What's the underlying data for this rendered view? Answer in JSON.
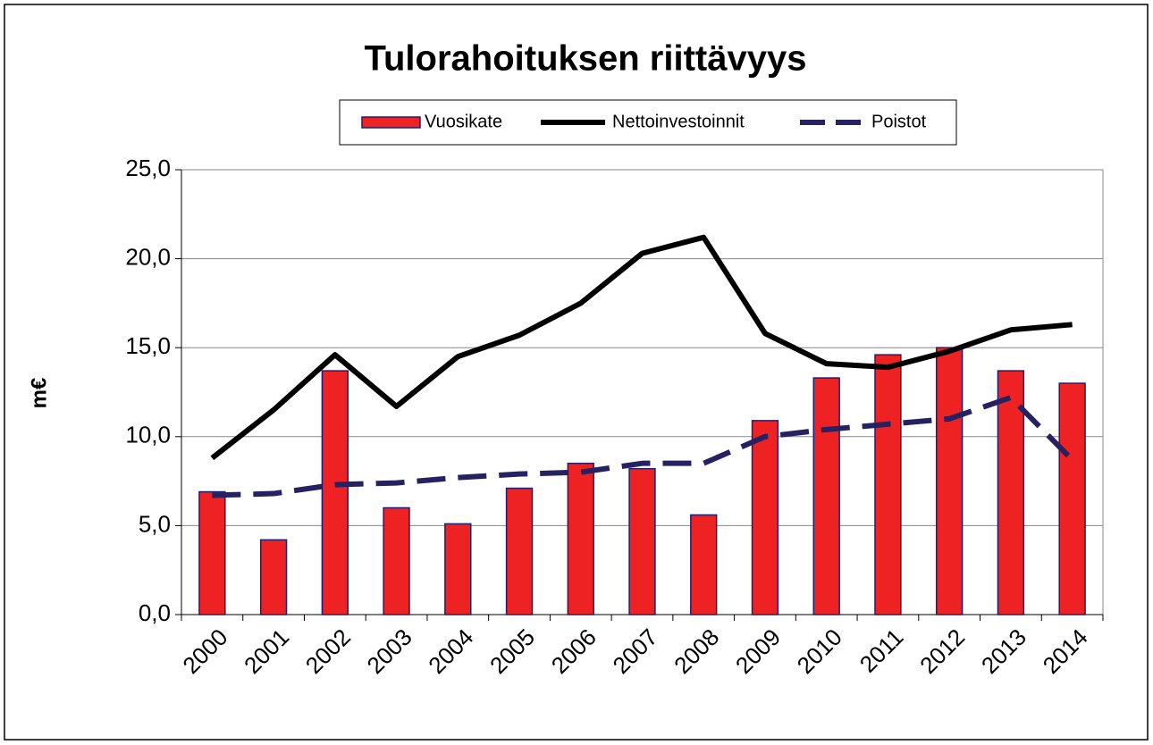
{
  "chart_data": {
    "type": "bar",
    "title": "Tulorahoituksen riittävyys",
    "y_label": "m€",
    "categories": [
      "2000",
      "2001",
      "2002",
      "2003",
      "2004",
      "2005",
      "2006",
      "2007",
      "2008",
      "2009",
      "2010",
      "2011",
      "2012",
      "2013",
      "2014"
    ],
    "series": [
      {
        "name": "Vuosikate",
        "type": "bar",
        "color": "#ee2222",
        "values": [
          6.9,
          4.2,
          13.7,
          6.0,
          5.1,
          7.1,
          8.5,
          8.2,
          5.6,
          10.9,
          13.3,
          14.6,
          15.0,
          13.7,
          13.0
        ]
      },
      {
        "name": "Nettoinvestoinnit",
        "type": "line",
        "color": "#000000",
        "values": [
          8.8,
          11.5,
          14.6,
          11.7,
          14.5,
          15.7,
          17.5,
          20.3,
          21.2,
          15.8,
          14.1,
          13.9,
          14.8,
          16.0,
          16.3
        ]
      },
      {
        "name": "Poistot",
        "type": "line",
        "dashed": true,
        "color": "#262262",
        "values": [
          6.7,
          6.8,
          7.3,
          7.4,
          7.7,
          7.9,
          8.0,
          8.5,
          8.5,
          10.0,
          10.4,
          10.7,
          11.0,
          12.2,
          8.7
        ]
      }
    ],
    "ylim": [
      0,
      25
    ],
    "yticks": [
      {
        "value": 0,
        "label": "0,0"
      },
      {
        "value": 5,
        "label": "5,0"
      },
      {
        "value": 10,
        "label": "10,0"
      },
      {
        "value": 15,
        "label": "15,0"
      },
      {
        "value": 20,
        "label": "20,0"
      },
      {
        "value": 25,
        "label": "25,0"
      }
    ],
    "grid": true,
    "legend": "top"
  }
}
